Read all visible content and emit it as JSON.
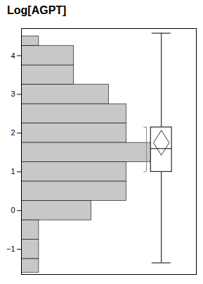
{
  "chart_data": {
    "type": "histogram",
    "title": "Log[AGPT]",
    "orientation": "horizontal",
    "bins": [
      4.5,
      4.25,
      3.75,
      3.25,
      2.75,
      2.25,
      1.75,
      1.25,
      0.75,
      0.25,
      -0.25,
      -0.75,
      -1.25,
      -1.6
    ],
    "values": [
      1,
      3,
      3,
      5,
      6,
      6,
      8,
      6,
      6,
      4,
      1,
      1,
      1
    ],
    "color": "#c8c8c8",
    "boxplot": {
      "q1": 1.0,
      "q3": 2.15,
      "median": 1.6,
      "mean": 1.75,
      "whisker_low": -1.35,
      "whisker_high": 4.58,
      "mean_diamond_half_height": 0.32
    },
    "xlim": [
      0,
      10
    ],
    "xticks": [],
    "ylim": [
      -1.65,
      4.7
    ],
    "yticks": [
      -1,
      0,
      1,
      2,
      3,
      4
    ],
    "tick_labels": "y",
    "grid": false
  }
}
